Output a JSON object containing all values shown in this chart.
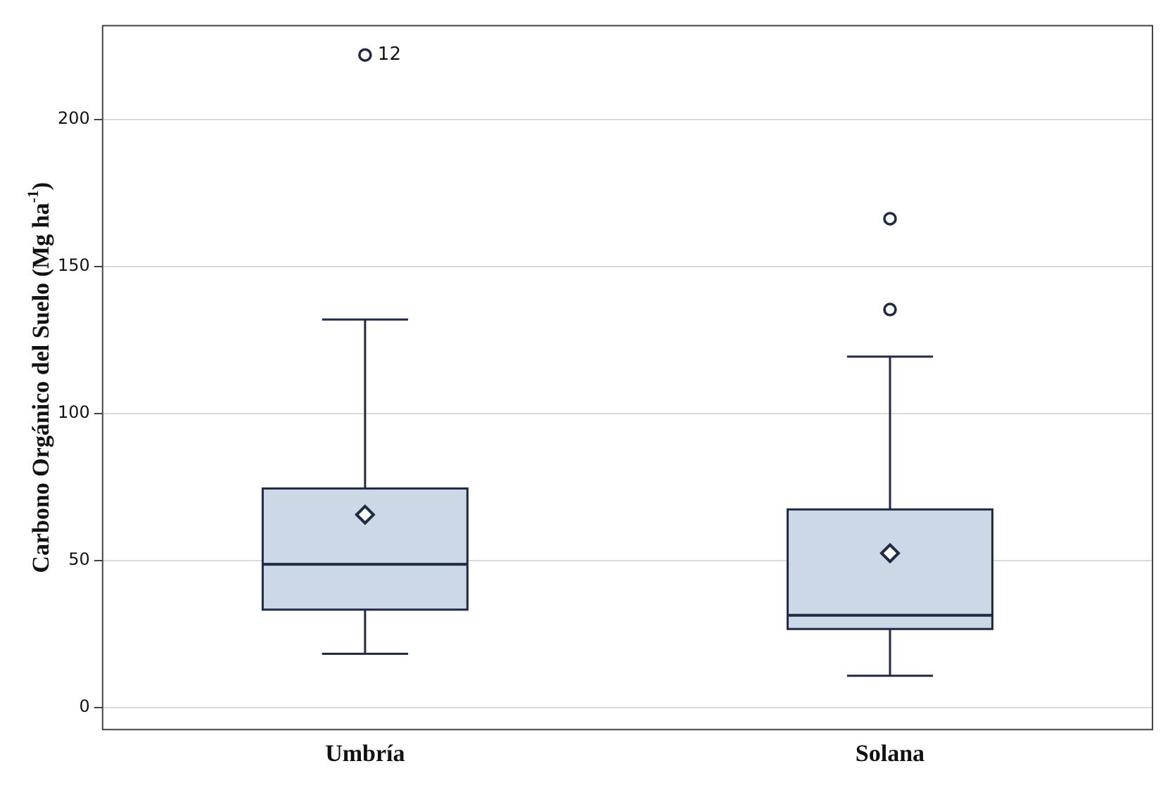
{
  "chart_data": {
    "type": "box",
    "ylabel": "Carbono Orgánico del Suelo (Mg ha$^{-1}$)",
    "categories": [
      "Umbría",
      "Solana"
    ],
    "boxes": [
      {
        "low": 18.3,
        "q1": 33.3,
        "median": 48.7,
        "q3": 74.5,
        "high": 132,
        "mean": 65.6,
        "outliers": [
          222
        ]
      },
      {
        "low": 10.8,
        "q1": 26.7,
        "median": 31.4,
        "q3": 67.4,
        "high": 119.4,
        "mean": 52.5,
        "outliers": [
          166.3,
          135.4
        ]
      }
    ],
    "color": "#cdd8e6",
    "ylim": [
      -7.5,
      232
    ],
    "yticks": [
      0,
      50,
      100,
      150,
      200
    ],
    "grid": "y",
    "marker": "diamond",
    "annotations": [
      "12"
    ]
  }
}
